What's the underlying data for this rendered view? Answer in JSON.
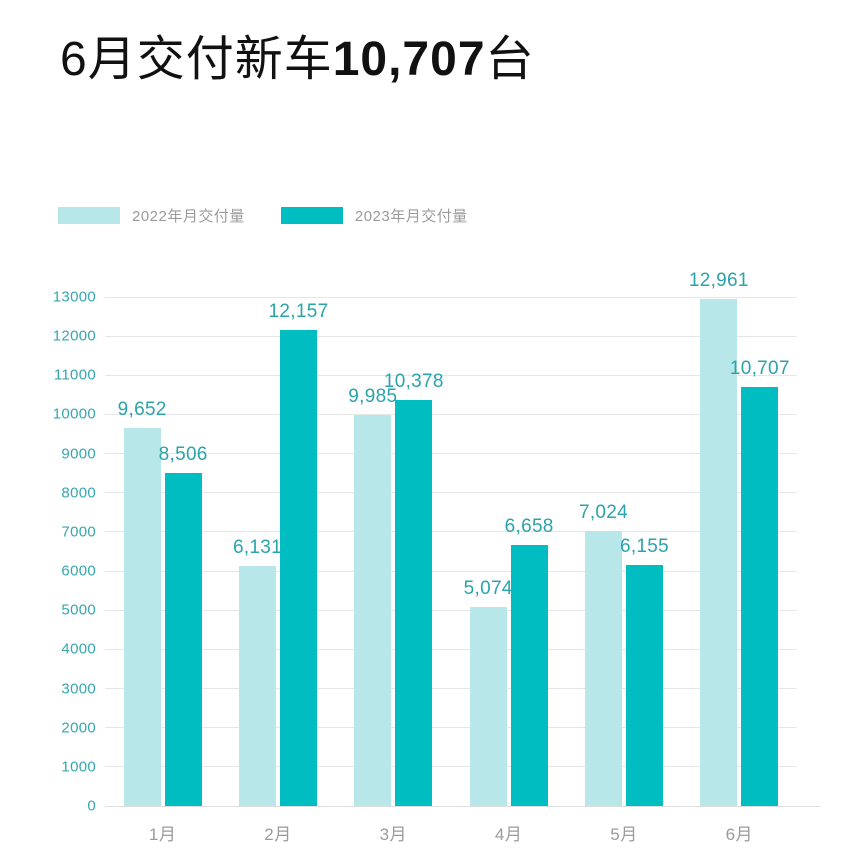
{
  "page": {
    "background": "#ffffff"
  },
  "title": {
    "prefix": "6月交付新车",
    "highlight": "10,707",
    "suffix": "台"
  },
  "legend": [
    {
      "label": "2022年月交付量",
      "color": "#B7E7E8"
    },
    {
      "label": "2023年月交付量",
      "color": "#00BDC1"
    }
  ],
  "chart_data": {
    "type": "bar",
    "title": "6月交付新车10,707台",
    "categories": [
      "1月",
      "2月",
      "3月",
      "4月",
      "5月",
      "6月"
    ],
    "series": [
      {
        "name": "2022年月交付量",
        "color": "#B7E7E8",
        "values": [
          9652,
          6131,
          9985,
          5074,
          7024,
          12961
        ],
        "labels": [
          "9,652",
          "6,131",
          "9,985",
          "5,074",
          "7,024",
          "12,961"
        ]
      },
      {
        "name": "2023年月交付量",
        "color": "#00BDC1",
        "values": [
          8506,
          12157,
          10378,
          6658,
          6155,
          10707
        ],
        "labels": [
          "8,506",
          "12,157",
          "10,378",
          "6,658",
          "6,155",
          "10,707"
        ]
      }
    ],
    "xlabel": "",
    "ylabel": "",
    "ylim": [
      0,
      13000
    ],
    "y_ticks": [
      0,
      1000,
      2000,
      3000,
      4000,
      5000,
      6000,
      7000,
      8000,
      9000,
      10000,
      11000,
      12000,
      13000
    ],
    "grid": "horizontal",
    "legend_position": "top-left",
    "colors": {
      "axis_text": "#35A7AF",
      "value_text": "#2AA3AB",
      "category_text": "#9B9B9B",
      "gridline": "#E6E6E6"
    }
  }
}
